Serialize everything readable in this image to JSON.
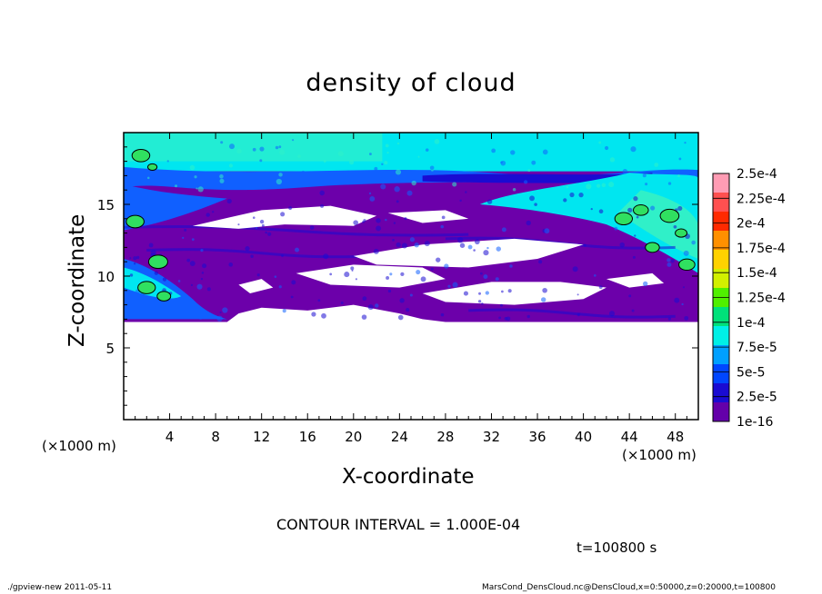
{
  "chart_data": {
    "type": "heatmap",
    "title": "density of cloud",
    "xlabel": "X-coordinate",
    "ylabel": "Z-coordinate",
    "x_unit": "(×1000 m)",
    "xlim": [
      0,
      50
    ],
    "ylim": [
      0,
      20
    ],
    "x_ticks": [
      4,
      8,
      12,
      16,
      20,
      24,
      28,
      32,
      36,
      40,
      44,
      48
    ],
    "y_ticks": [
      5,
      10,
      15
    ],
    "colorbar": {
      "labels": [
        "2.5e-4",
        "2.25e-4",
        "2e-4",
        "1.75e-4",
        "1.5e-4",
        "1.25e-4",
        "1e-4",
        "7.5e-5",
        "5e-5",
        "2.5e-5",
        "1e-16"
      ],
      "colors": [
        "#ff9cb4",
        "#ff5050",
        "#ff2a00",
        "#ff9000",
        "#ffd200",
        "#d2f000",
        "#50f000",
        "#00e17a",
        "#00f0e6",
        "#00a0ff",
        "#0046ff",
        "#1a0bd2",
        "#6400aa"
      ]
    },
    "contour_interval": "CONTOUR INTERVAL = 1.000E-04",
    "time_label": "t=100800 s"
  },
  "footer": {
    "left": "./gpview-new   2011-05-11",
    "right": "MarsCond_DensCloud.nc@DensCloud,x=0:50000,z=0:20000,t=100800"
  },
  "colors": {
    "purple": "#6c00aa",
    "dark_blue": "#1a0bd2",
    "blue": "#1060ff",
    "cyan": "#00e6f0",
    "aqua": "#30f0c8",
    "green": "#30e060"
  }
}
